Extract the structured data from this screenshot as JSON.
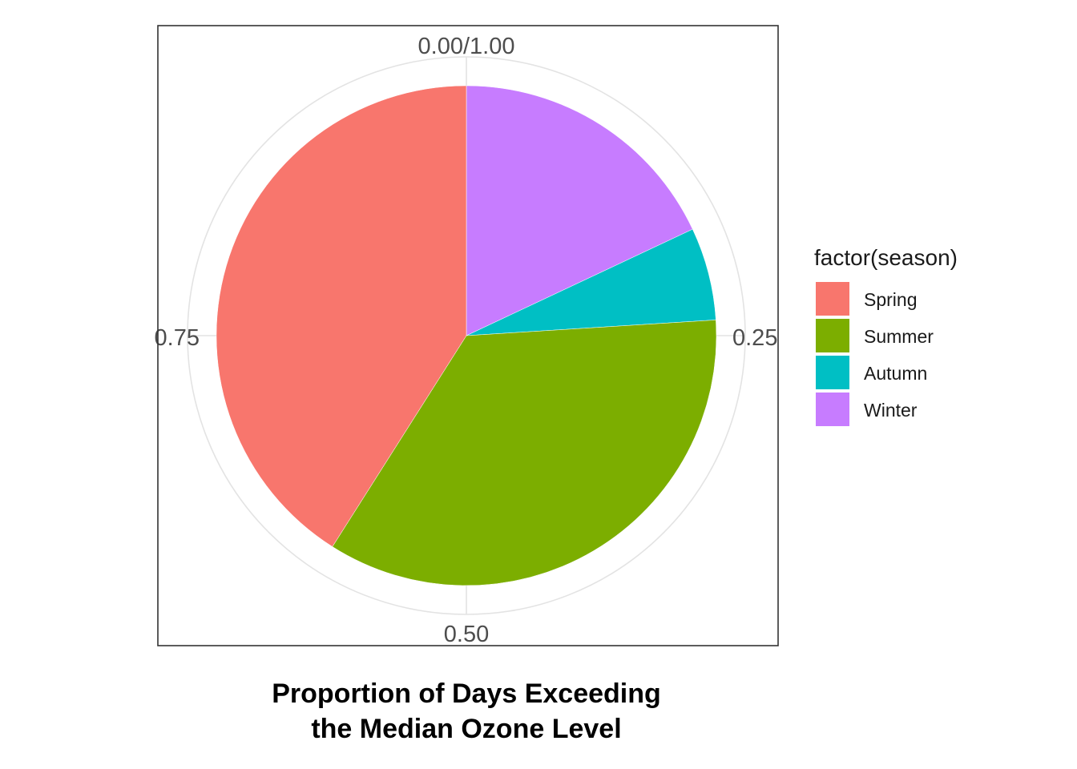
{
  "chart_data": {
    "type": "pie",
    "title_lines": [
      "Proportion of Days Exceeding",
      "the Median Ozone Level"
    ],
    "theta_ticks": [
      {
        "value": 0,
        "label": "0.00/1.00"
      },
      {
        "value": 0.25,
        "label": "0.25"
      },
      {
        "value": 0.5,
        "label": "0.50"
      },
      {
        "value": 0.75,
        "label": "0.75"
      }
    ],
    "legend": {
      "title": "factor(season)",
      "placement": "right"
    },
    "slices": [
      {
        "name": "Spring",
        "value": 0.41,
        "color": "#F8766D"
      },
      {
        "name": "Summer",
        "value": 0.35,
        "color": "#7CAE00"
      },
      {
        "name": "Autumn",
        "value": 0.06,
        "color": "#00BFC4"
      },
      {
        "name": "Winter",
        "value": 0.18,
        "color": "#C77CFF"
      }
    ],
    "stack_order": [
      "Winter",
      "Autumn",
      "Summer",
      "Spring"
    ],
    "grid": true,
    "panel_border": true
  }
}
